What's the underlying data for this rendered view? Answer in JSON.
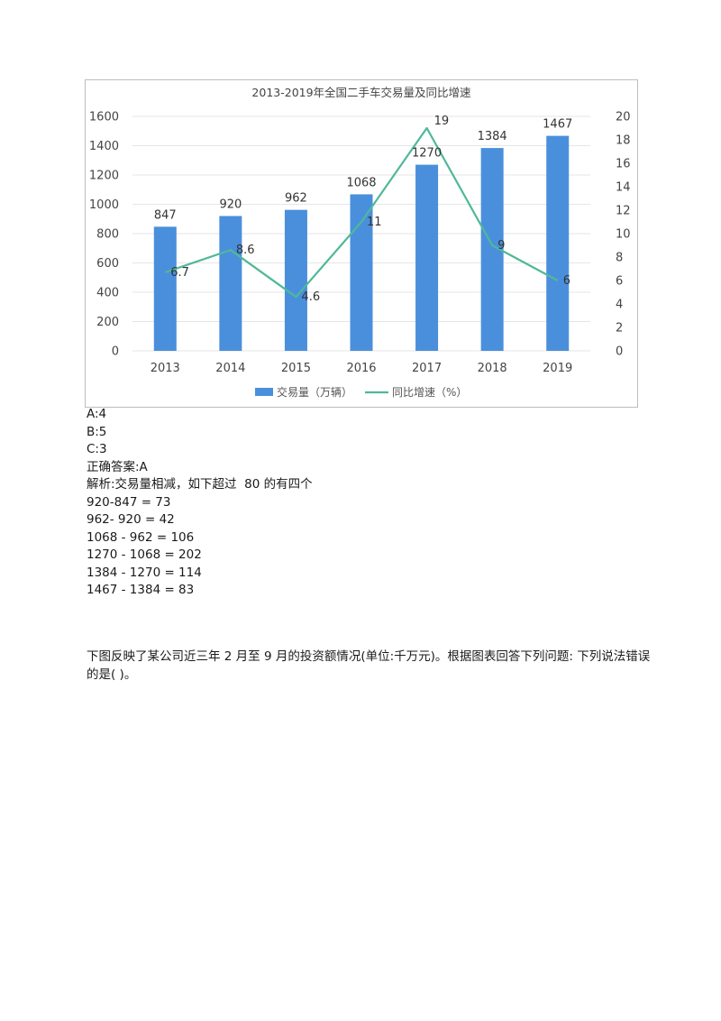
{
  "chart_data": {
    "type": "bar+line",
    "title": "2013-2019年全国二手车交易量及同比增速",
    "categories": [
      "2013",
      "2014",
      "2015",
      "2016",
      "2017",
      "2018",
      "2019"
    ],
    "series": [
      {
        "name": "交易量（万辆）",
        "type": "bar",
        "axis": "left",
        "color": "#4a8fdc",
        "values": [
          847,
          920,
          962,
          1068,
          1270,
          1384,
          1467
        ]
      },
      {
        "name": "同比增速（%）",
        "type": "line",
        "axis": "right",
        "color": "#4fb89a",
        "values": [
          6.7,
          8.6,
          4.6,
          11,
          19,
          9,
          6
        ]
      }
    ],
    "value_labels": {
      "bars": [
        "847",
        "920",
        "962",
        "1068",
        "1270",
        "1384",
        "1467"
      ],
      "line": [
        "6.7",
        "8.6",
        "4.6",
        "11",
        "19",
        "9",
        "6"
      ]
    },
    "y_left": {
      "lim": [
        0,
        1600
      ],
      "ticks": [
        "0",
        "200",
        "400",
        "600",
        "800",
        "1000",
        "1200",
        "1400",
        "1600"
      ]
    },
    "y_right": {
      "lim": [
        0,
        20
      ],
      "ticks": [
        "0",
        "2",
        "4",
        "6",
        "8",
        "10",
        "12",
        "14",
        "16",
        "18",
        "20"
      ]
    },
    "grid": true,
    "legend": "bottom"
  },
  "answer_block": {
    "lines": [
      "A:4",
      "B:5",
      "C:3",
      "正确答案:A",
      "解析:交易量相减，如下超过  80 的有四个",
      "920-847 = 73",
      "962- 920 = 42",
      "1068 - 962 = 106",
      "1270 - 1068 = 202",
      "1384 - 1270 = 114",
      "1467 - 1384 = 83"
    ]
  },
  "question": {
    "text": "下图反映了某公司近三年  2 月至  9 月的投资额情况(单位:千万元)。根据图表回答下列问题:  下列说法错误的是(  )。"
  }
}
